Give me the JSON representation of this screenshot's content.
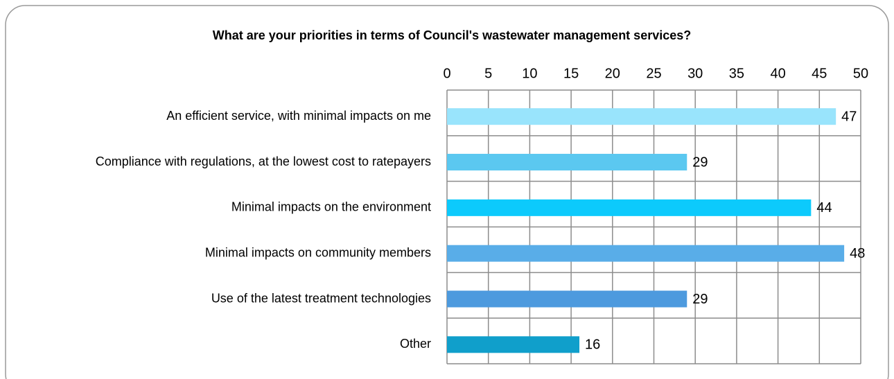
{
  "chart_data": {
    "type": "barh",
    "title": "What are your priorities in terms of Council's wastewater management services?",
    "categories": [
      "An efficient service, with minimal impacts on me",
      "Compliance with regulations, at the lowest cost to ratepayers",
      "Minimal impacts on the environment",
      "Minimal impacts on community members",
      "Use of the latest treatment technologies",
      "Other"
    ],
    "values": [
      47,
      29,
      44,
      48,
      29,
      16
    ],
    "colors": [
      "#99e4fc",
      "#5bc8f0",
      "#0ccafc",
      "#59ade8",
      "#4d9ade",
      "#109fcb"
    ],
    "xlim": [
      0,
      50
    ],
    "xticks": [
      0,
      5,
      10,
      15,
      20,
      25,
      30,
      35,
      40,
      45,
      50
    ],
    "grid": true
  }
}
